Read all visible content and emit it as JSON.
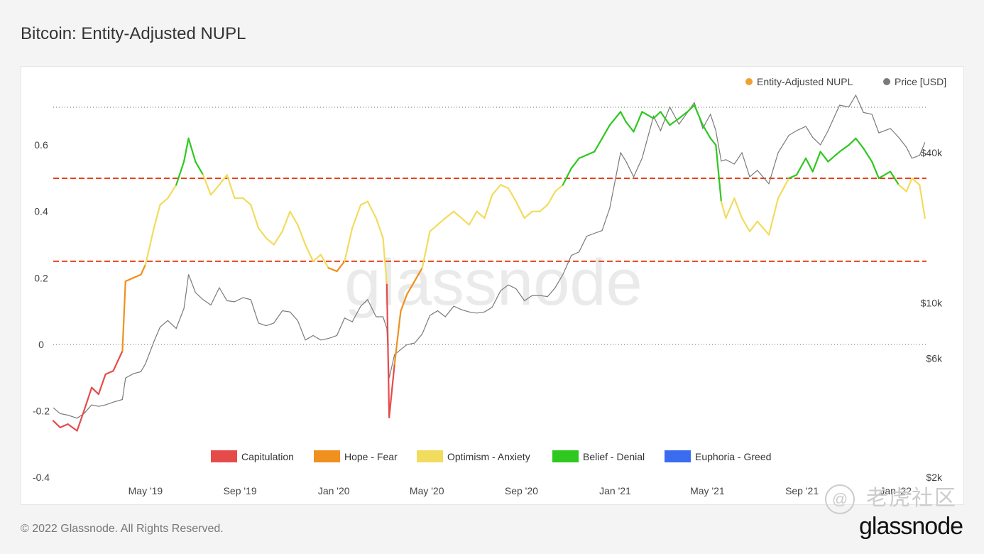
{
  "page": {
    "title": "Bitcoin: Entity-Adjusted NUPL",
    "copyright": "© 2022 Glassnode. All Rights Reserved.",
    "brand": "glassnode",
    "watermark_text": "glassnode",
    "watermark_community": "老虎社区",
    "watermark_handle": "@"
  },
  "colors": {
    "Capitulation": "#e64b4b",
    "Hope - Fear": "#f0901e",
    "Optimism - Anxiety": "#f2dc5d",
    "Belief - Denial": "#2ec81e",
    "Euphoria - Greed": "#3b6cf0",
    "nupl_legend_dot": "#f0a030",
    "price_line": "#7a7a7a",
    "threshold_line": "#e8421c"
  },
  "chart_data": {
    "type": "line",
    "title": "Bitcoin: Entity-Adjusted NUPL",
    "legend": {
      "placement": "top-right",
      "entries": [
        "Entity-Adjusted NUPL",
        "Price [USD]"
      ]
    },
    "zone_legend": {
      "placement": "bottom",
      "entries": [
        "Capitulation",
        "Hope - Fear",
        "Optimism - Anxiety",
        "Belief - Denial",
        "Euphoria - Greed"
      ]
    },
    "x_tick_labels": [
      "May '19",
      "Sep '19",
      "Jan '20",
      "May '20",
      "Sep '20",
      "Jan '21",
      "May '21",
      "Sep '21",
      "Jan '22"
    ],
    "x_ticks": [
      "2019-05-01",
      "2019-09-01",
      "2020-01-01",
      "2020-05-01",
      "2020-09-01",
      "2021-01-01",
      "2021-05-01",
      "2021-09-01",
      "2022-01-01"
    ],
    "xlim": [
      "2019-01-01",
      "2022-02-10"
    ],
    "left_axis": {
      "ticks": [
        -0.4,
        -0.2,
        0,
        0.2,
        0.4,
        0.6
      ],
      "tick_labels": [
        "-0.4",
        "-0.2",
        "0",
        "0.2",
        "0.4",
        "0.6"
      ],
      "ylim": [
        -0.4,
        0.75
      ]
    },
    "right_axis": {
      "scale": "log",
      "ticks": [
        2000,
        6000,
        10000,
        40000
      ],
      "tick_labels": [
        "$2k",
        "$6k",
        "$10k",
        "$40k"
      ],
      "ylim": [
        2000,
        68000
      ]
    },
    "thresholds": [
      0.25,
      0.5
    ],
    "grid": false,
    "series": [
      {
        "name": "Entity-Adjusted NUPL",
        "axis": "left",
        "colored_by_zone": true,
        "x": [
          "2019-01-01",
          "2019-01-10",
          "2019-01-20",
          "2019-02-01",
          "2019-02-10",
          "2019-02-20",
          "2019-03-01",
          "2019-03-10",
          "2019-03-20",
          "2019-04-01",
          "2019-04-05",
          "2019-04-15",
          "2019-04-25",
          "2019-05-01",
          "2019-05-12",
          "2019-05-20",
          "2019-05-30",
          "2019-06-10",
          "2019-06-20",
          "2019-06-26",
          "2019-07-05",
          "2019-07-15",
          "2019-07-25",
          "2019-08-05",
          "2019-08-15",
          "2019-08-25",
          "2019-09-05",
          "2019-09-15",
          "2019-09-25",
          "2019-10-05",
          "2019-10-15",
          "2019-10-26",
          "2019-11-05",
          "2019-11-15",
          "2019-11-25",
          "2019-12-05",
          "2019-12-15",
          "2019-12-25",
          "2020-01-05",
          "2020-01-15",
          "2020-01-25",
          "2020-02-05",
          "2020-02-14",
          "2020-02-25",
          "2020-03-05",
          "2020-03-10",
          "2020-03-13",
          "2020-03-20",
          "2020-03-28",
          "2020-04-05",
          "2020-04-15",
          "2020-04-25",
          "2020-05-05",
          "2020-05-15",
          "2020-05-25",
          "2020-06-05",
          "2020-06-15",
          "2020-06-25",
          "2020-07-05",
          "2020-07-15",
          "2020-07-25",
          "2020-08-05",
          "2020-08-15",
          "2020-08-25",
          "2020-09-05",
          "2020-09-15",
          "2020-09-25",
          "2020-10-05",
          "2020-10-15",
          "2020-10-25",
          "2020-11-05",
          "2020-11-15",
          "2020-11-25",
          "2020-12-05",
          "2020-12-15",
          "2020-12-25",
          "2021-01-08",
          "2021-01-15",
          "2021-01-25",
          "2021-02-05",
          "2021-02-20",
          "2021-03-01",
          "2021-03-13",
          "2021-03-25",
          "2021-04-05",
          "2021-04-14",
          "2021-04-25",
          "2021-05-05",
          "2021-05-12",
          "2021-05-19",
          "2021-05-25",
          "2021-06-05",
          "2021-06-15",
          "2021-06-25",
          "2021-07-05",
          "2021-07-20",
          "2021-08-01",
          "2021-08-15",
          "2021-08-25",
          "2021-09-06",
          "2021-09-15",
          "2021-09-25",
          "2021-10-05",
          "2021-10-20",
          "2021-11-01",
          "2021-11-10",
          "2021-11-20",
          "2021-12-01",
          "2021-12-10",
          "2021-12-25",
          "2022-01-05",
          "2022-01-15",
          "2022-01-22",
          "2022-02-01",
          "2022-02-08"
        ],
        "values": [
          -0.23,
          -0.25,
          -0.24,
          -0.26,
          -0.2,
          -0.13,
          -0.15,
          -0.09,
          -0.08,
          -0.02,
          0.19,
          0.2,
          0.21,
          0.24,
          0.35,
          0.42,
          0.44,
          0.48,
          0.55,
          0.62,
          0.55,
          0.51,
          0.45,
          0.48,
          0.51,
          0.44,
          0.44,
          0.42,
          0.35,
          0.32,
          0.3,
          0.34,
          0.4,
          0.36,
          0.3,
          0.25,
          0.27,
          0.23,
          0.22,
          0.25,
          0.35,
          0.42,
          0.43,
          0.38,
          0.32,
          0.18,
          -0.22,
          -0.06,
          0.1,
          0.15,
          0.19,
          0.23,
          0.34,
          0.36,
          0.38,
          0.4,
          0.38,
          0.36,
          0.4,
          0.38,
          0.45,
          0.48,
          0.47,
          0.43,
          0.38,
          0.4,
          0.4,
          0.42,
          0.46,
          0.48,
          0.53,
          0.56,
          0.57,
          0.58,
          0.62,
          0.66,
          0.7,
          0.67,
          0.64,
          0.7,
          0.68,
          0.7,
          0.66,
          0.68,
          0.7,
          0.72,
          0.66,
          0.62,
          0.6,
          0.43,
          0.38,
          0.44,
          0.38,
          0.34,
          0.37,
          0.33,
          0.44,
          0.5,
          0.51,
          0.56,
          0.52,
          0.58,
          0.55,
          0.58,
          0.6,
          0.62,
          0.59,
          0.55,
          0.5,
          0.52,
          0.48,
          0.46,
          0.5,
          0.48,
          0.38
        ]
      },
      {
        "name": "Price [USD]",
        "axis": "right",
        "color": "#7a7a7a",
        "x": [
          "2019-01-01",
          "2019-01-10",
          "2019-01-20",
          "2019-02-01",
          "2019-02-10",
          "2019-02-20",
          "2019-03-01",
          "2019-03-10",
          "2019-03-20",
          "2019-04-01",
          "2019-04-05",
          "2019-04-15",
          "2019-04-25",
          "2019-05-01",
          "2019-05-12",
          "2019-05-20",
          "2019-05-30",
          "2019-06-10",
          "2019-06-20",
          "2019-06-26",
          "2019-07-05",
          "2019-07-15",
          "2019-07-25",
          "2019-08-05",
          "2019-08-15",
          "2019-08-25",
          "2019-09-05",
          "2019-09-15",
          "2019-09-25",
          "2019-10-05",
          "2019-10-15",
          "2019-10-26",
          "2019-11-05",
          "2019-11-15",
          "2019-11-25",
          "2019-12-05",
          "2019-12-15",
          "2019-12-25",
          "2020-01-05",
          "2020-01-15",
          "2020-01-25",
          "2020-02-05",
          "2020-02-14",
          "2020-02-25",
          "2020-03-05",
          "2020-03-10",
          "2020-03-13",
          "2020-03-20",
          "2020-03-28",
          "2020-04-05",
          "2020-04-15",
          "2020-04-25",
          "2020-05-05",
          "2020-05-15",
          "2020-05-25",
          "2020-06-05",
          "2020-06-15",
          "2020-06-25",
          "2020-07-05",
          "2020-07-15",
          "2020-07-25",
          "2020-08-05",
          "2020-08-15",
          "2020-08-25",
          "2020-09-05",
          "2020-09-15",
          "2020-09-25",
          "2020-10-05",
          "2020-10-15",
          "2020-10-25",
          "2020-11-05",
          "2020-11-15",
          "2020-11-25",
          "2020-12-05",
          "2020-12-15",
          "2020-12-25",
          "2021-01-08",
          "2021-01-15",
          "2021-01-25",
          "2021-02-05",
          "2021-02-20",
          "2021-03-01",
          "2021-03-13",
          "2021-03-25",
          "2021-04-05",
          "2021-04-14",
          "2021-04-25",
          "2021-05-05",
          "2021-05-12",
          "2021-05-19",
          "2021-05-25",
          "2021-06-05",
          "2021-06-15",
          "2021-06-25",
          "2021-07-05",
          "2021-07-20",
          "2021-08-01",
          "2021-08-15",
          "2021-08-25",
          "2021-09-06",
          "2021-09-15",
          "2021-09-25",
          "2021-10-05",
          "2021-10-20",
          "2021-11-01",
          "2021-11-10",
          "2021-11-20",
          "2021-12-01",
          "2021-12-10",
          "2021-12-25",
          "2022-01-05",
          "2022-01-15",
          "2022-01-22",
          "2022-02-01",
          "2022-02-08"
        ],
        "values": [
          3800,
          3600,
          3550,
          3450,
          3600,
          3900,
          3850,
          3900,
          4000,
          4100,
          5000,
          5200,
          5300,
          5700,
          7000,
          8000,
          8500,
          7900,
          9500,
          13000,
          11000,
          10300,
          9800,
          11500,
          10200,
          10100,
          10500,
          10300,
          8300,
          8100,
          8300,
          9300,
          9200,
          8500,
          7100,
          7400,
          7100,
          7200,
          7400,
          8700,
          8400,
          9700,
          10300,
          8800,
          8800,
          7900,
          5000,
          6200,
          6500,
          6800,
          6900,
          7500,
          8900,
          9300,
          8800,
          9700,
          9400,
          9200,
          9100,
          9200,
          9600,
          11200,
          11800,
          11400,
          10200,
          10700,
          10700,
          10600,
          11500,
          13000,
          15500,
          16000,
          18500,
          19000,
          19500,
          24000,
          40000,
          37000,
          32000,
          38000,
          56000,
          49000,
          61000,
          52000,
          58000,
          63500,
          50000,
          57000,
          49000,
          37000,
          37500,
          36000,
          40000,
          32000,
          34000,
          30000,
          40000,
          47000,
          49000,
          51000,
          46000,
          43000,
          49000,
          62000,
          61000,
          68000,
          58000,
          57000,
          48000,
          50000,
          46000,
          42000,
          38000,
          39000,
          44000
        ]
      }
    ]
  }
}
